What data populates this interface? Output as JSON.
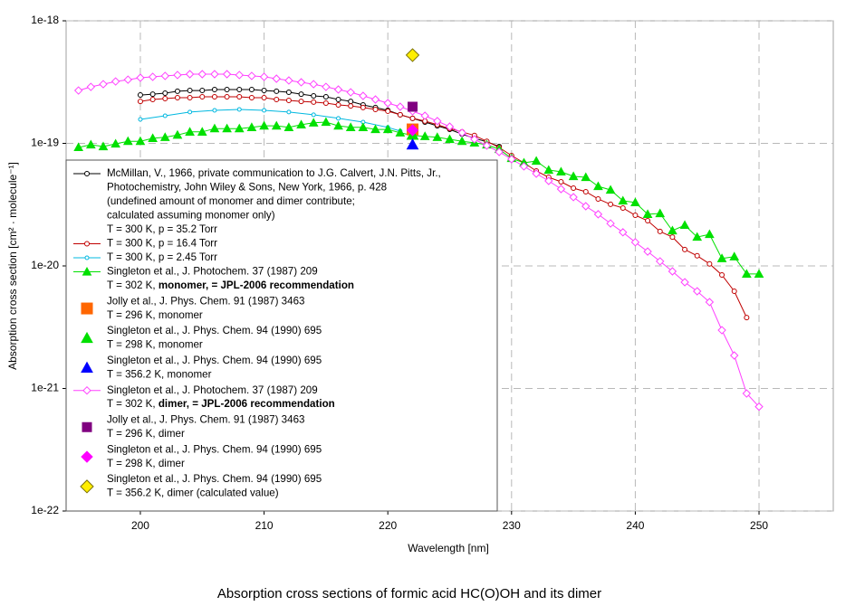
{
  "chart_data": {
    "type": "line",
    "caption": "Absorption cross sections of formic acid HC(O)OH and its dimer",
    "x_label": "Wavelength [nm]",
    "y_label": "Absorption cross section [cm² · molecule⁻¹]",
    "xlim": [
      194,
      256
    ],
    "ylim": [
      1e-22,
      1e-18
    ],
    "log_y": true,
    "grid": true,
    "legend_loc": "lower left",
    "xticks": [
      200,
      210,
      220,
      230,
      240,
      250
    ],
    "yticks": [
      {
        "value": 1e-22,
        "label": "1e-22"
      },
      {
        "value": 1e-21,
        "label": "1e-21"
      },
      {
        "value": 1e-20,
        "label": "1e-20"
      },
      {
        "value": 1e-19,
        "label": "1e-19"
      },
      {
        "value": 1e-18,
        "label": "1e-18"
      }
    ],
    "series": [
      {
        "name": "McMillan, V., 1966, private communication to J.G. Calvert, J.N. Pitts, Jr.,",
        "details": [
          "Photochemistry, John Wiley & Sons, New York, 1966,  p. 428",
          "(undefined amount of monomer and dimer contribute;",
          "calculated assuming monomer only)",
          "T = 300 K, p = 35.2 Torr"
        ],
        "color": "#000000",
        "marker": "circle",
        "filled": false,
        "marker_size": 6,
        "line": true,
        "x": [
          200,
          201,
          202,
          203,
          204,
          205,
          206,
          207,
          208,
          209,
          210,
          211,
          212,
          213,
          214,
          215,
          216,
          217,
          218,
          219,
          220,
          221,
          222,
          223,
          224,
          225,
          226,
          227,
          228,
          229
        ],
        "values": [
          2.48e-19,
          2.52e-19,
          2.57e-19,
          2.66e-19,
          2.7e-19,
          2.7e-19,
          2.75e-19,
          2.75e-19,
          2.75e-19,
          2.75e-19,
          2.7e-19,
          2.66e-19,
          2.61e-19,
          2.52e-19,
          2.44e-19,
          2.4e-19,
          2.28e-19,
          2.2e-19,
          2.06e-19,
          1.96e-19,
          1.86e-19,
          1.71e-19,
          1.6e-19,
          1.49e-19,
          1.39e-19,
          1.3e-19,
          1.19e-19,
          1.1e-19,
          1.03e-19,
          9.42e-20
        ]
      },
      {
        "name": "T = 300 K, p = 16.4 Torr",
        "details": [],
        "color": "#c00000",
        "marker": "circle",
        "filled": false,
        "marker_size": 6,
        "line": true,
        "x": [
          200,
          201,
          202,
          203,
          204,
          205,
          206,
          207,
          208,
          209,
          210,
          211,
          212,
          213,
          214,
          215,
          216,
          217,
          218,
          219,
          220,
          221,
          222,
          223,
          224,
          225,
          226,
          227,
          228,
          229,
          230,
          231,
          232,
          233,
          234,
          235,
          236,
          237,
          238,
          239,
          240,
          241,
          242,
          243,
          244,
          245,
          246,
          247,
          248,
          249
        ],
        "values": [
          2.2e-19,
          2.28e-19,
          2.32e-19,
          2.36e-19,
          2.36e-19,
          2.4e-19,
          2.4e-19,
          2.4e-19,
          2.4e-19,
          2.36e-19,
          2.36e-19,
          2.28e-19,
          2.24e-19,
          2.2e-19,
          2.17e-19,
          2.13e-19,
          2.06e-19,
          2.02e-19,
          1.96e-19,
          1.89e-19,
          1.83e-19,
          1.71e-19,
          1.6e-19,
          1.52e-19,
          1.42e-19,
          1.32e-19,
          1.24e-19,
          1.16e-19,
          1.04e-19,
          9.27e-20,
          7.95e-20,
          6.94e-20,
          5.96e-20,
          5.29e-20,
          4.86e-20,
          4.31e-20,
          4.03e-20,
          3.52e-20,
          3.18e-20,
          2.97e-20,
          2.59e-20,
          2.34e-20,
          1.91e-20,
          1.72e-20,
          1.36e-20,
          1.21e-20,
          1.04e-20,
          8.44e-21,
          6.21e-21,
          3.79e-21
        ]
      },
      {
        "name": "T = 300 K, p = 2.45 Torr",
        "details": [],
        "color": "#00b8e0",
        "marker": "circle",
        "filled": false,
        "marker_size": 5,
        "line": true,
        "x": [
          200,
          202,
          204,
          206,
          208,
          210,
          212,
          214,
          216,
          218,
          220,
          221
        ],
        "values": [
          1.57e-19,
          1.68e-19,
          1.8e-19,
          1.86e-19,
          1.89e-19,
          1.86e-19,
          1.8e-19,
          1.71e-19,
          1.6e-19,
          1.49e-19,
          1.35e-19,
          1.26e-19
        ]
      },
      {
        "name": "Singleton et al., J. Photochem. 37 (1987) 209",
        "details": [
          [
            "T = 302 K, ",
            "monomer, = JPL-2006 recommendation"
          ]
        ],
        "color": "#00e000",
        "marker": "triangle",
        "filled": true,
        "marker_size": 9,
        "line": true,
        "x": [
          195,
          196,
          197,
          198,
          199,
          200,
          201,
          202,
          203,
          204,
          205,
          206,
          207,
          208,
          209,
          210,
          211,
          212,
          213,
          214,
          215,
          216,
          217,
          218,
          219,
          220,
          221,
          222,
          223,
          224,
          225,
          226,
          227,
          228,
          229,
          230,
          231,
          232,
          233,
          234,
          235,
          236,
          237,
          238,
          239,
          240,
          241,
          242,
          243,
          244,
          245,
          246,
          247,
          248,
          249,
          250
        ],
        "values": [
          9.27e-20,
          9.75e-20,
          9.42e-20,
          9.91e-20,
          1.04e-19,
          1.04e-19,
          1.1e-19,
          1.12e-19,
          1.17e-19,
          1.24e-19,
          1.24e-19,
          1.32e-19,
          1.32e-19,
          1.32e-19,
          1.35e-19,
          1.39e-19,
          1.39e-19,
          1.35e-19,
          1.42e-19,
          1.47e-19,
          1.49e-19,
          1.39e-19,
          1.35e-19,
          1.35e-19,
          1.3e-19,
          1.3e-19,
          1.22e-19,
          1.16e-19,
          1.14e-19,
          1.12e-19,
          1.08e-19,
          1.04e-19,
          1.01e-19,
          9.75e-20,
          8.95e-20,
          7.55e-20,
          6.94e-20,
          7.18e-20,
          6.06e-20,
          5.86e-20,
          5.38e-20,
          5.29e-20,
          4.46e-20,
          4.17e-20,
          3.4e-20,
          3.29e-20,
          2.64e-20,
          2.68e-20,
          1.94e-20,
          2.15e-20,
          1.72e-20,
          1.81e-20,
          1.15e-20,
          1.19e-20,
          8.59e-21,
          8.59e-21
        ]
      },
      {
        "name": "Jolly et al., J. Phys. Chem. 91 (1987) 3463",
        "details": [
          "T = 296 K, monomer"
        ],
        "color": "#ff6600",
        "marker": "square",
        "filled": true,
        "marker_size": 12,
        "line": false,
        "x": [
          222
        ],
        "values": [
          1.3e-19
        ]
      },
      {
        "name": "Singleton et al., J. Phys. Chem. 94 (1990) 695",
        "details": [
          "T = 298 K, monomer"
        ],
        "color": "#00e000",
        "marker": "triangle",
        "filled": true,
        "marker_size": 12,
        "line": false,
        "x": [
          222
        ],
        "values": [
          1.17e-19
        ]
      },
      {
        "name": "Singleton et al., J. Phys. Chem. 94 (1990) 695",
        "details": [
          "T = 356.2 K, monomer"
        ],
        "color": "#0000ff",
        "marker": "triangle",
        "filled": true,
        "marker_size": 12,
        "line": false,
        "x": [
          222
        ],
        "values": [
          9.75e-20
        ]
      },
      {
        "name": "Singleton et al., J. Photochem. 37 (1987) 209",
        "details": [
          [
            "T = 302 K, ",
            "dimer, = JPL-2006 recommendation"
          ]
        ],
        "color": "#ff40ff",
        "marker": "diamond",
        "filled": false,
        "marker_size": 8,
        "line": true,
        "x": [
          195,
          196,
          197,
          198,
          199,
          200,
          201,
          202,
          203,
          204,
          205,
          206,
          207,
          208,
          209,
          210,
          211,
          212,
          213,
          214,
          215,
          216,
          217,
          218,
          219,
          220,
          221,
          222,
          223,
          224,
          225,
          226,
          227,
          228,
          229,
          230,
          231,
          232,
          233,
          234,
          235,
          236,
          237,
          238,
          239,
          240,
          241,
          242,
          243,
          244,
          245,
          246,
          247,
          248,
          249,
          250
        ],
        "values": [
          2.7e-19,
          2.89e-19,
          3.04e-19,
          3.2e-19,
          3.31e-19,
          3.43e-19,
          3.49e-19,
          3.55e-19,
          3.61e-19,
          3.67e-19,
          3.67e-19,
          3.67e-19,
          3.67e-19,
          3.61e-19,
          3.55e-19,
          3.49e-19,
          3.37e-19,
          3.26e-19,
          3.15e-19,
          3.04e-19,
          2.89e-19,
          2.75e-19,
          2.61e-19,
          2.44e-19,
          2.28e-19,
          2.13e-19,
          1.99e-19,
          1.83e-19,
          1.68e-19,
          1.52e-19,
          1.37e-19,
          1.22e-19,
          1.08e-19,
          9.59e-20,
          8.51e-20,
          7.43e-20,
          6.49e-20,
          5.66e-20,
          4.94e-20,
          4.24e-20,
          3.64e-20,
          3.07e-20,
          2.64e-20,
          2.22e-20,
          1.88e-20,
          1.56e-20,
          1.31e-20,
          1.09e-20,
          9.03e-21,
          7.36e-21,
          6.21e-21,
          5.07e-21,
          2.99e-21,
          1.86e-21,
          9.1e-22,
          7.1e-22
        ]
      },
      {
        "name": "Jolly et al., J. Phys. Chem. 91 (1987) 3463",
        "details": [
          "T = 296 K, dimer"
        ],
        "color": "#800080",
        "marker": "square",
        "filled": true,
        "marker_size": 10,
        "line": false,
        "x": [
          222
        ],
        "values": [
          1.99e-19
        ]
      },
      {
        "name": "Singleton et al., J. Phys. Chem. 94 (1990) 695",
        "details": [
          "T = 298 K, dimer"
        ],
        "color": "#ff00ff",
        "marker": "diamond",
        "filled": true,
        "marker_size": 12,
        "line": false,
        "x": [
          222
        ],
        "values": [
          1.28e-19
        ]
      },
      {
        "name": "Singleton et al., J. Phys. Chem. 94 (1990) 695",
        "details": [
          "T = 356.2 K, dimer  (calculated value)"
        ],
        "color": "#ffee00",
        "edgecolor": "#7a7000",
        "marker": "diamond",
        "filled": true,
        "marker_size": 14,
        "line": false,
        "x": [
          222
        ],
        "values": [
          5.25e-19
        ]
      }
    ]
  }
}
